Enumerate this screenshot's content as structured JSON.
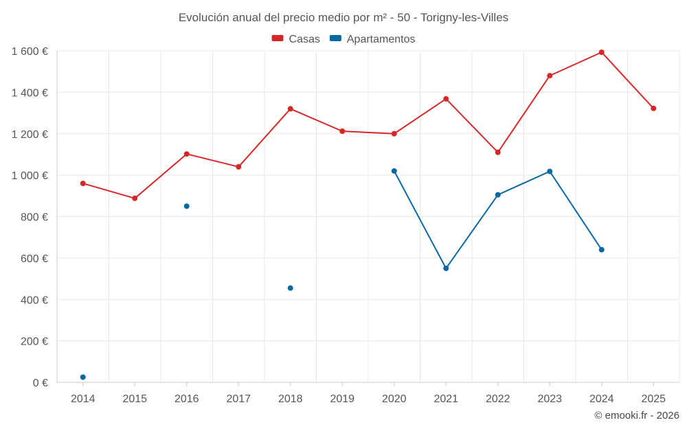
{
  "chart_data": {
    "type": "line",
    "title": "Evolución anual del precio medio por m² - 50 - Torigny-les-Villes",
    "categories": [
      "2014",
      "2015",
      "2016",
      "2017",
      "2018",
      "2019",
      "2020",
      "2021",
      "2022",
      "2023",
      "2024",
      "2025"
    ],
    "series": [
      {
        "name": "Casas",
        "color": "#d62728",
        "values": [
          960,
          888,
          1102,
          1040,
          1320,
          1212,
          1200,
          1368,
          1110,
          1480,
          1593,
          1322
        ]
      },
      {
        "name": "Apartamentos",
        "color": "#0868a0",
        "values": [
          25,
          null,
          850,
          null,
          455,
          null,
          1020,
          550,
          905,
          1018,
          640,
          null
        ]
      }
    ],
    "yticks": [
      0,
      200,
      400,
      600,
      800,
      1000,
      1200,
      1400,
      1600
    ],
    "ytick_labels": [
      "0 €",
      "200 €",
      "400 €",
      "600 €",
      "800 €",
      "1 000 €",
      "1 200 €",
      "1 400 €",
      "1 600 €"
    ],
    "ylim": [
      0,
      1600
    ],
    "xlabel": "",
    "ylabel": "",
    "legend_position": "top-center",
    "grid": true
  },
  "credit": "© emooki.fr - 2026"
}
